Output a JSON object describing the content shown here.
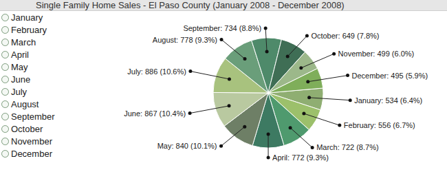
{
  "chart_data": {
    "type": "pie",
    "title": "Single Family Home Sales - El Paso County (January 2008 - December 2008)",
    "categories": [
      "January",
      "February",
      "March",
      "April",
      "May",
      "June",
      "July",
      "August",
      "September",
      "October",
      "November",
      "December"
    ],
    "values": [
      534,
      556,
      722,
      772,
      840,
      867,
      886,
      778,
      734,
      649,
      499,
      495
    ],
    "value_labels": [
      "January: 534 (6.4%)",
      "February: 556 (6.7%)",
      "March: 722 (8.7%)",
      "April: 772 (9.3%)",
      "May: 840 (10.1%)",
      "June: 867 (10.4%)",
      "July: 886 (10.6%)",
      "August: 778 (9.3%)",
      "September: 734 (8.8%)",
      "October: 649 (7.8%)",
      "November: 499 (6.0%)",
      "December: 495 (5.9%)"
    ],
    "colors": [
      "#8fae72",
      "#9cc06b",
      "#4f9a6e",
      "#3d7a62",
      "#6e7f66",
      "#b9c9a0",
      "#a8c27e",
      "#6a9e7a",
      "#4e8a6a",
      "#3f6e55",
      "#9cb88a",
      "#7fae5a"
    ],
    "data_labels": true,
    "legend": "left"
  }
}
